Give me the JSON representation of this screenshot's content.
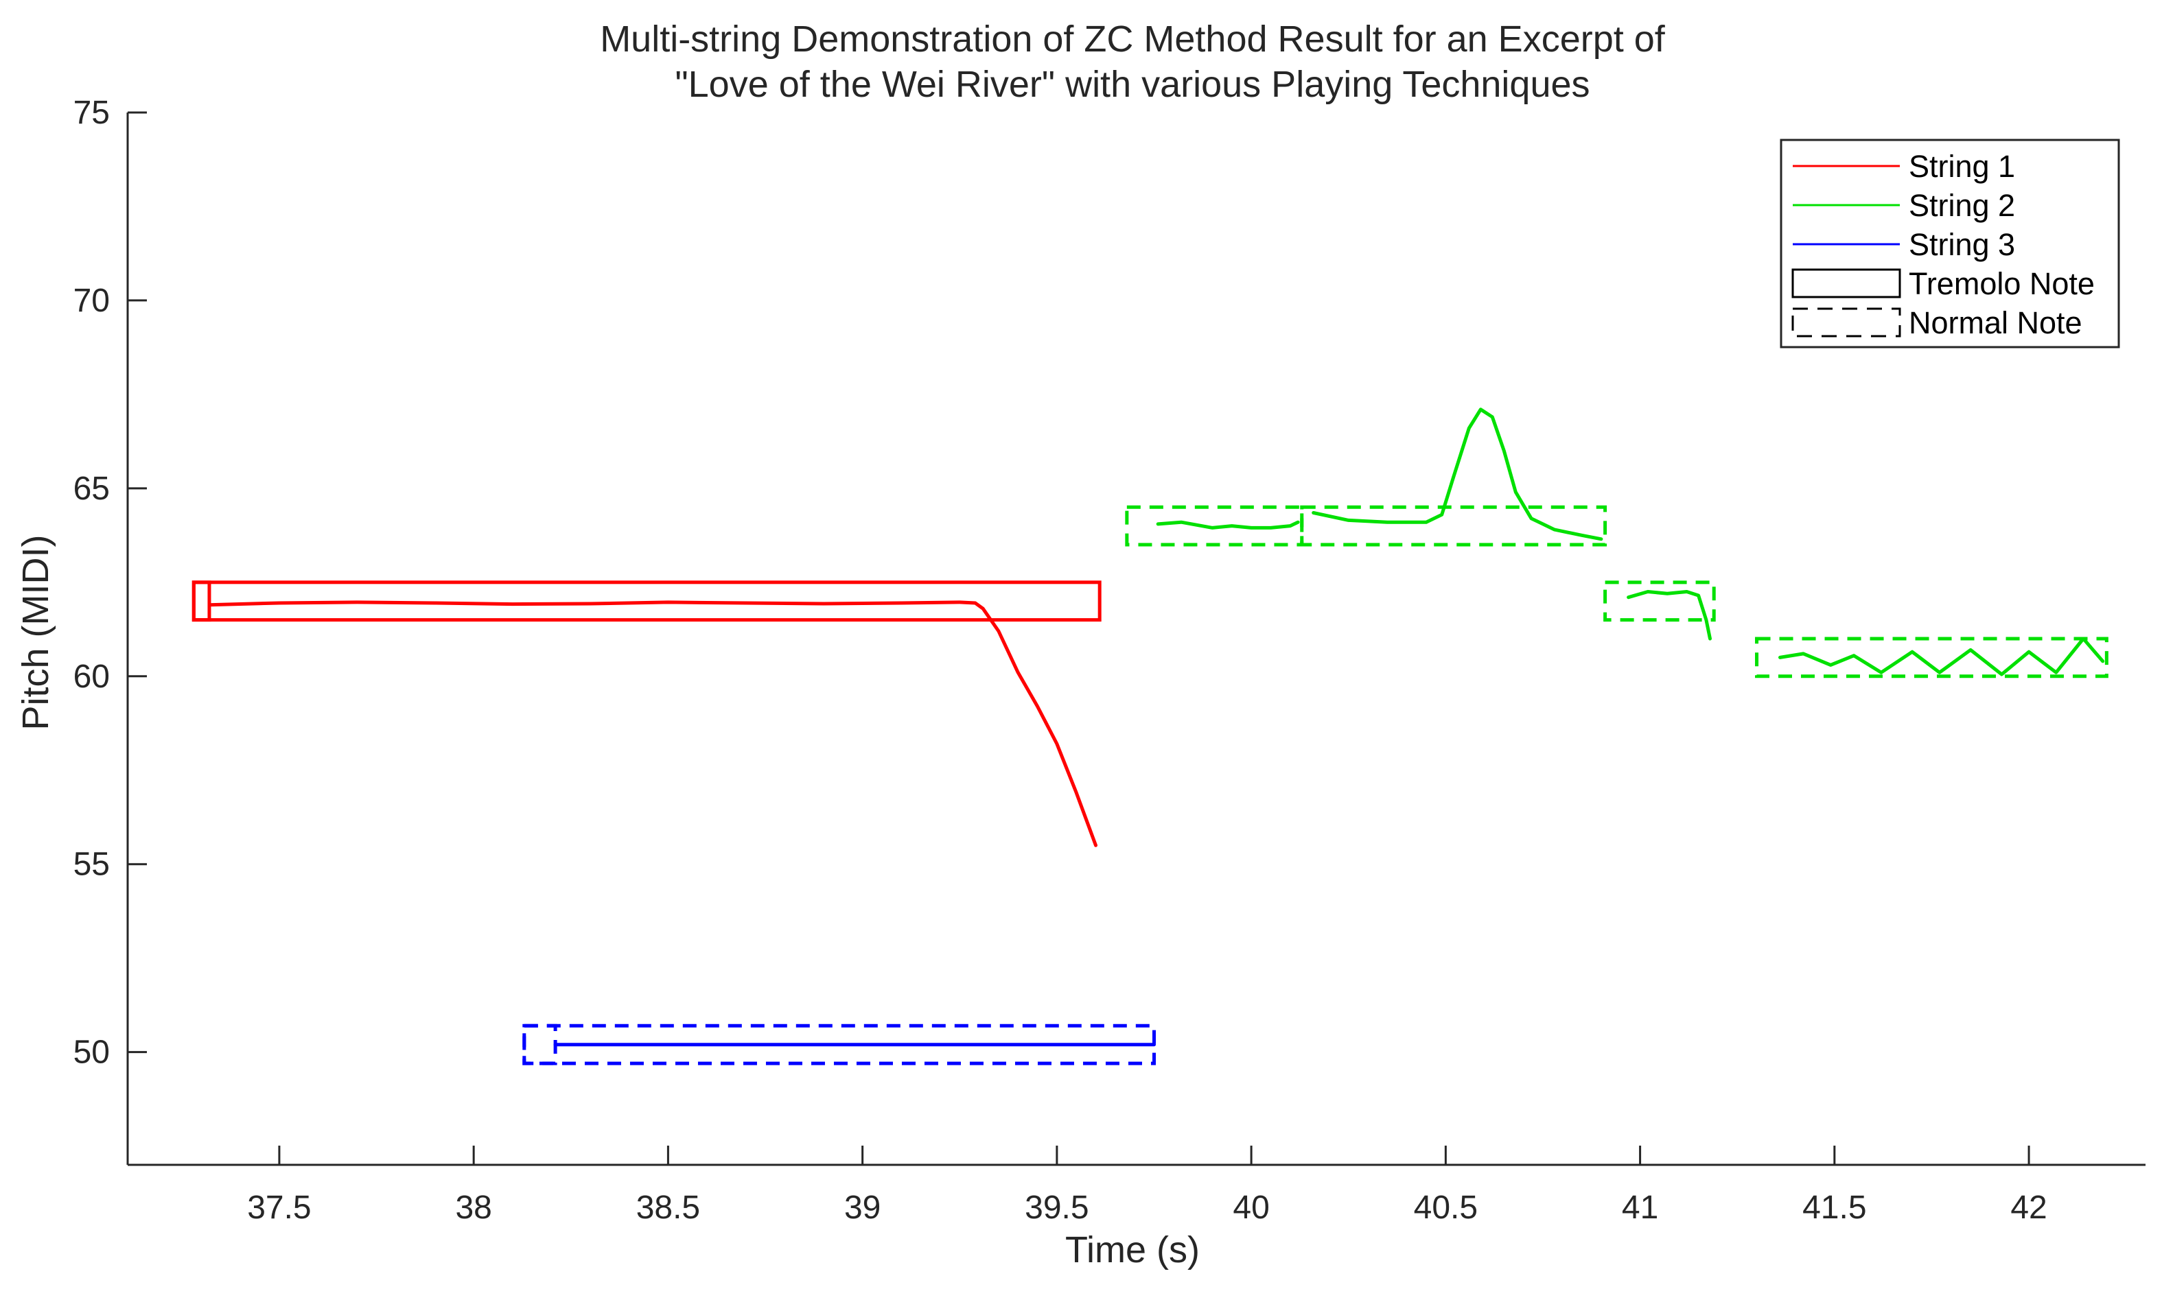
{
  "chart_data": {
    "type": "line",
    "title": [
      "Multi-string Demonstration of ZC Method Result for an Excerpt of",
      "\"Love of the Wei River\" with various Playing Techniques"
    ],
    "xlabel": "Time (s)",
    "ylabel": "Pitch (MIDI)",
    "xlim": [
      37.11,
      42.3
    ],
    "ylim": [
      47,
      75
    ],
    "xticks": [
      37.5,
      38,
      38.5,
      39,
      39.5,
      40,
      40.5,
      41,
      41.5,
      42
    ],
    "yticks": [
      50,
      55,
      60,
      65,
      70,
      75
    ],
    "grid": false,
    "legend_position": "top-right",
    "legend": [
      {
        "label": "String 1",
        "kind": "line",
        "color": "#ff0000"
      },
      {
        "label": "String 2",
        "kind": "line",
        "color": "#00e000"
      },
      {
        "label": "String 3",
        "kind": "line",
        "color": "#0000ff"
      },
      {
        "label": "Tremolo Note",
        "kind": "solid-box",
        "color": "#000000"
      },
      {
        "label": "Normal Note",
        "kind": "dashed-box",
        "color": "#000000"
      }
    ],
    "series": [
      {
        "name": "String 1",
        "color": "#ff0000",
        "points": [
          [
            37.32,
            61.9
          ],
          [
            37.5,
            61.95
          ],
          [
            37.7,
            61.97
          ],
          [
            37.9,
            61.95
          ],
          [
            38.1,
            61.92
          ],
          [
            38.3,
            61.93
          ],
          [
            38.5,
            61.97
          ],
          [
            38.7,
            61.95
          ],
          [
            38.9,
            61.93
          ],
          [
            39.1,
            61.95
          ],
          [
            39.25,
            61.97
          ],
          [
            39.29,
            61.95
          ],
          [
            39.31,
            61.8
          ],
          [
            39.35,
            61.2
          ],
          [
            39.4,
            60.1
          ],
          [
            39.45,
            59.2
          ],
          [
            39.5,
            58.2
          ],
          [
            39.55,
            56.9
          ],
          [
            39.6,
            55.5
          ]
        ]
      },
      {
        "name": "String 2",
        "color": "#00e000",
        "segments": [
          [
            [
              39.76,
              64.05
            ],
            [
              39.82,
              64.1
            ],
            [
              39.9,
              63.95
            ],
            [
              39.95,
              64.0
            ],
            [
              40.0,
              63.95
            ],
            [
              40.05,
              63.95
            ],
            [
              40.1,
              64.0
            ],
            [
              40.12,
              64.1
            ]
          ],
          [
            [
              40.16,
              64.35
            ],
            [
              40.25,
              64.15
            ],
            [
              40.35,
              64.1
            ],
            [
              40.45,
              64.1
            ],
            [
              40.49,
              64.3
            ],
            [
              40.52,
              65.3
            ],
            [
              40.56,
              66.6
            ],
            [
              40.59,
              67.1
            ],
            [
              40.62,
              66.9
            ],
            [
              40.65,
              66.0
            ],
            [
              40.68,
              64.9
            ],
            [
              40.72,
              64.2
            ],
            [
              40.78,
              63.9
            ],
            [
              40.85,
              63.75
            ],
            [
              40.9,
              63.65
            ]
          ],
          [
            [
              40.97,
              62.1
            ],
            [
              41.02,
              62.25
            ],
            [
              41.07,
              62.2
            ],
            [
              41.12,
              62.25
            ],
            [
              41.15,
              62.15
            ],
            [
              41.17,
              61.5
            ],
            [
              41.18,
              61.0
            ]
          ],
          [
            [
              41.36,
              60.5
            ],
            [
              41.42,
              60.6
            ],
            [
              41.49,
              60.3
            ],
            [
              41.55,
              60.55
            ],
            [
              41.62,
              60.1
            ],
            [
              41.7,
              60.65
            ],
            [
              41.77,
              60.1
            ],
            [
              41.85,
              60.7
            ],
            [
              41.93,
              60.05
            ],
            [
              42.0,
              60.65
            ],
            [
              42.07,
              60.1
            ],
            [
              42.14,
              61.0
            ],
            [
              42.19,
              60.4
            ]
          ]
        ]
      },
      {
        "name": "String 3",
        "color": "#0000ff",
        "points": [
          [
            38.21,
            50.2
          ],
          [
            39.75,
            50.2
          ]
        ]
      }
    ],
    "notes": [
      {
        "string": "String 1",
        "kind": "tremolo",
        "x0": 37.28,
        "x1": 39.61,
        "y0": 61.5,
        "y1": 62.5
      },
      {
        "string": "String 1",
        "kind": "tremolo",
        "x0": 37.28,
        "x1": 37.32,
        "y0": 61.5,
        "y1": 62.5
      },
      {
        "string": "String 3",
        "kind": "normal",
        "x0": 38.13,
        "x1": 39.75,
        "y0": 49.7,
        "y1": 50.7
      },
      {
        "string": "String 3",
        "kind": "normal",
        "x0": 38.13,
        "x1": 38.21,
        "y0": 49.7,
        "y1": 50.7
      },
      {
        "string": "String 2",
        "kind": "normal",
        "x0": 39.68,
        "x1": 40.13,
        "y0": 63.5,
        "y1": 64.5
      },
      {
        "string": "String 2",
        "kind": "normal",
        "x0": 40.13,
        "x1": 40.91,
        "y0": 63.5,
        "y1": 64.5
      },
      {
        "string": "String 2",
        "kind": "normal",
        "x0": 40.91,
        "x1": 41.19,
        "y0": 61.5,
        "y1": 62.5
      },
      {
        "string": "String 2",
        "kind": "normal",
        "x0": 41.3,
        "x1": 42.2,
        "y0": 60.0,
        "y1": 61.0
      }
    ]
  }
}
